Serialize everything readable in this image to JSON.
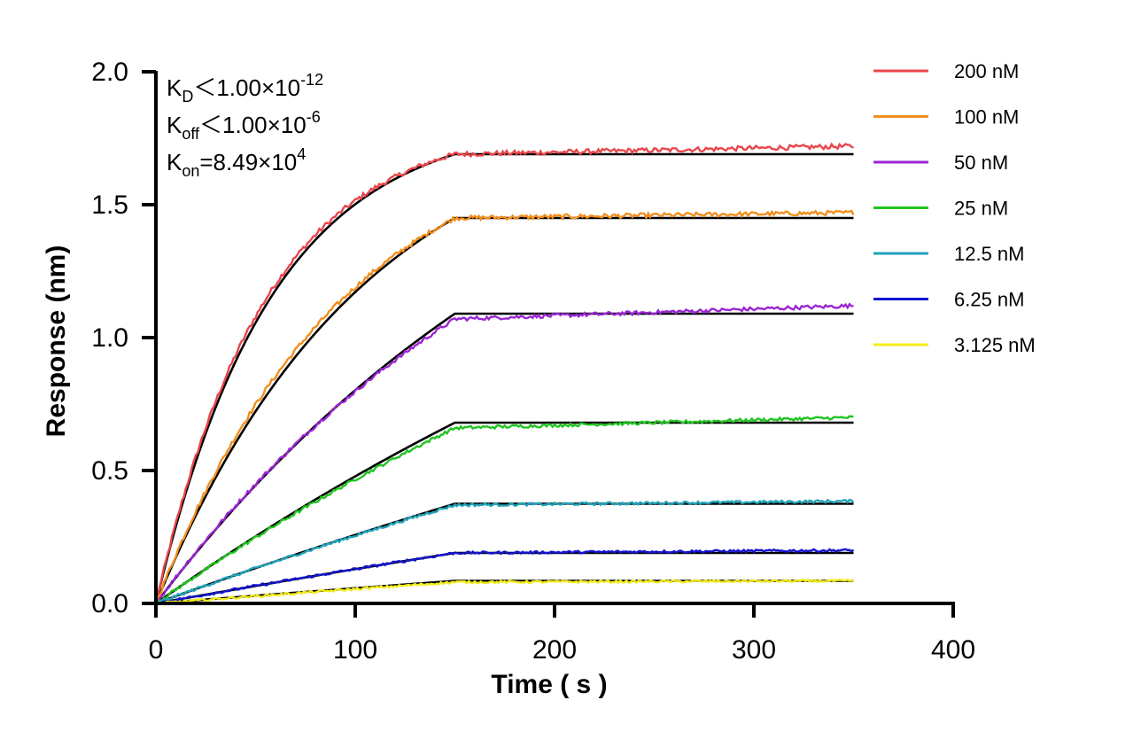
{
  "chart_data": {
    "type": "line",
    "title": "",
    "xlabel": "Time ( s )",
    "ylabel": "Response (nm)",
    "xlim": [
      0,
      400
    ],
    "ylim": [
      0.0,
      2.0
    ],
    "x_ticks": [
      "0",
      "100",
      "200",
      "300",
      "400"
    ],
    "y_ticks": [
      "0.0",
      "0.5",
      "1.0",
      "1.5",
      "2.0"
    ],
    "grid": false,
    "legend_position": "right",
    "association_end_s": 150,
    "dissociation_end_s": 350,
    "series": [
      {
        "name": "200 nM",
        "color": "#e8474c",
        "plateau": 1.69,
        "final": 1.72,
        "tau": 55
      },
      {
        "name": "100 nM",
        "color": "#f28e1c",
        "plateau": 1.45,
        "final": 1.47,
        "tau": 95
      },
      {
        "name": "50 nM",
        "color": "#9b26d3",
        "plateau": 1.07,
        "final": 1.12,
        "tau": 200
      },
      {
        "name": "25 nM",
        "color": "#21c421",
        "plateau": 0.66,
        "final": 0.7,
        "tau": 400
      },
      {
        "name": "12.5 nM",
        "color": "#1fa3b8",
        "plateau": 0.37,
        "final": 0.385,
        "tau": 700
      },
      {
        "name": "6.25 nM",
        "color": "#1414d0",
        "plateau": 0.19,
        "final": 0.2,
        "tau": 1200
      },
      {
        "name": "3.125 nM",
        "color": "#f2ec1a",
        "plateau": 0.08,
        "final": 0.085,
        "tau": 2000
      }
    ],
    "fit_curves": [
      {
        "plateau": 1.69,
        "tau": 58
      },
      {
        "plateau": 1.45,
        "tau": 105
      },
      {
        "plateau": 1.09,
        "tau": 230
      },
      {
        "plateau": 0.68,
        "tau": 450
      },
      {
        "plateau": 0.375,
        "tau": 800
      },
      {
        "plateau": 0.19,
        "tau": 1300
      },
      {
        "plateau": 0.085,
        "tau": 2200
      }
    ],
    "annotations": {
      "kd": {
        "main": "K",
        "sub": "D",
        "text": "＜1.00×10",
        "sup": "-12"
      },
      "koff": {
        "main": "K",
        "sub": "off",
        "text": "＜1.00×10",
        "sup": "-6"
      },
      "kon": {
        "main": "K",
        "sub": "on",
        "text": "=8.49×10",
        "sup": "4"
      }
    },
    "fit_color": "#000000"
  }
}
